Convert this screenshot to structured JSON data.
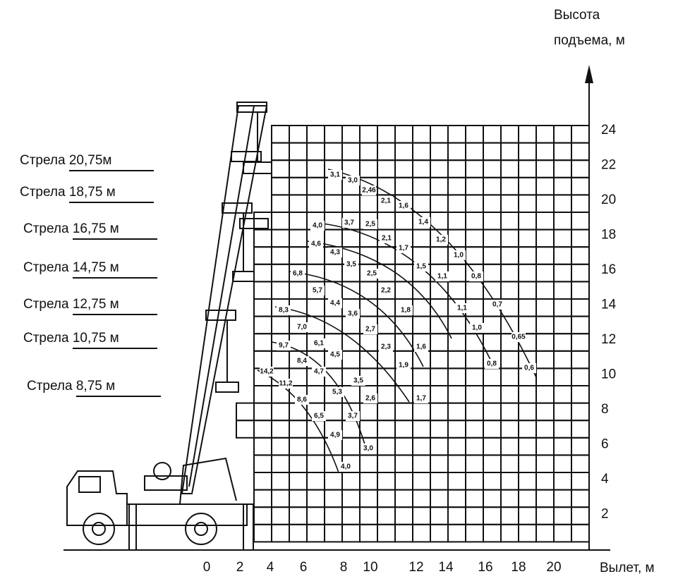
{
  "y_axis": {
    "title_lines": [
      "Высота",
      "подъема, м"
    ],
    "ticks": [
      "24",
      "22",
      "20",
      "18",
      "16",
      "14",
      "12",
      "10",
      "8",
      "6",
      "4",
      "2"
    ]
  },
  "x_axis": {
    "title": "Вылет, м",
    "ticks": [
      "0",
      "2",
      "4",
      "6",
      "8",
      "10",
      "12",
      "14",
      "16",
      "18",
      "20"
    ]
  },
  "booms": [
    "Стрела 20,75м",
    "Стрела 18,75 м",
    "Стрела 16,75 м",
    "Стрела 14,75 м",
    "Стрела 12,75 м",
    "Стрела 10,75 м",
    "Стрела 8,75 м"
  ],
  "load_labels": [
    "3,1",
    "3,0",
    "2,46",
    "2,1",
    "1,6",
    "1,4",
    "1,2",
    "1,0",
    "0,8",
    "0,7",
    "0,65",
    "0,6",
    "4,0",
    "3,7",
    "2,5",
    "2,1",
    "1,7",
    "1,5",
    "1,1",
    "1,1",
    "1,0",
    "0,8",
    "4,6",
    "4,3",
    "3,5",
    "2,5",
    "2,2",
    "1,8",
    "1,6",
    "6,8",
    "5,7",
    "4,4",
    "3,6",
    "2,7",
    "2,3",
    "1,9",
    "1,7",
    "8,3",
    "7,0",
    "6,1",
    "4,5",
    "9,7",
    "8,4",
    "4,7",
    "3,5",
    "2,6",
    "14,2",
    "11,2",
    "8,6",
    "5,3",
    "6,5",
    "3,7",
    "4,9",
    "3,0",
    "4,0"
  ]
}
